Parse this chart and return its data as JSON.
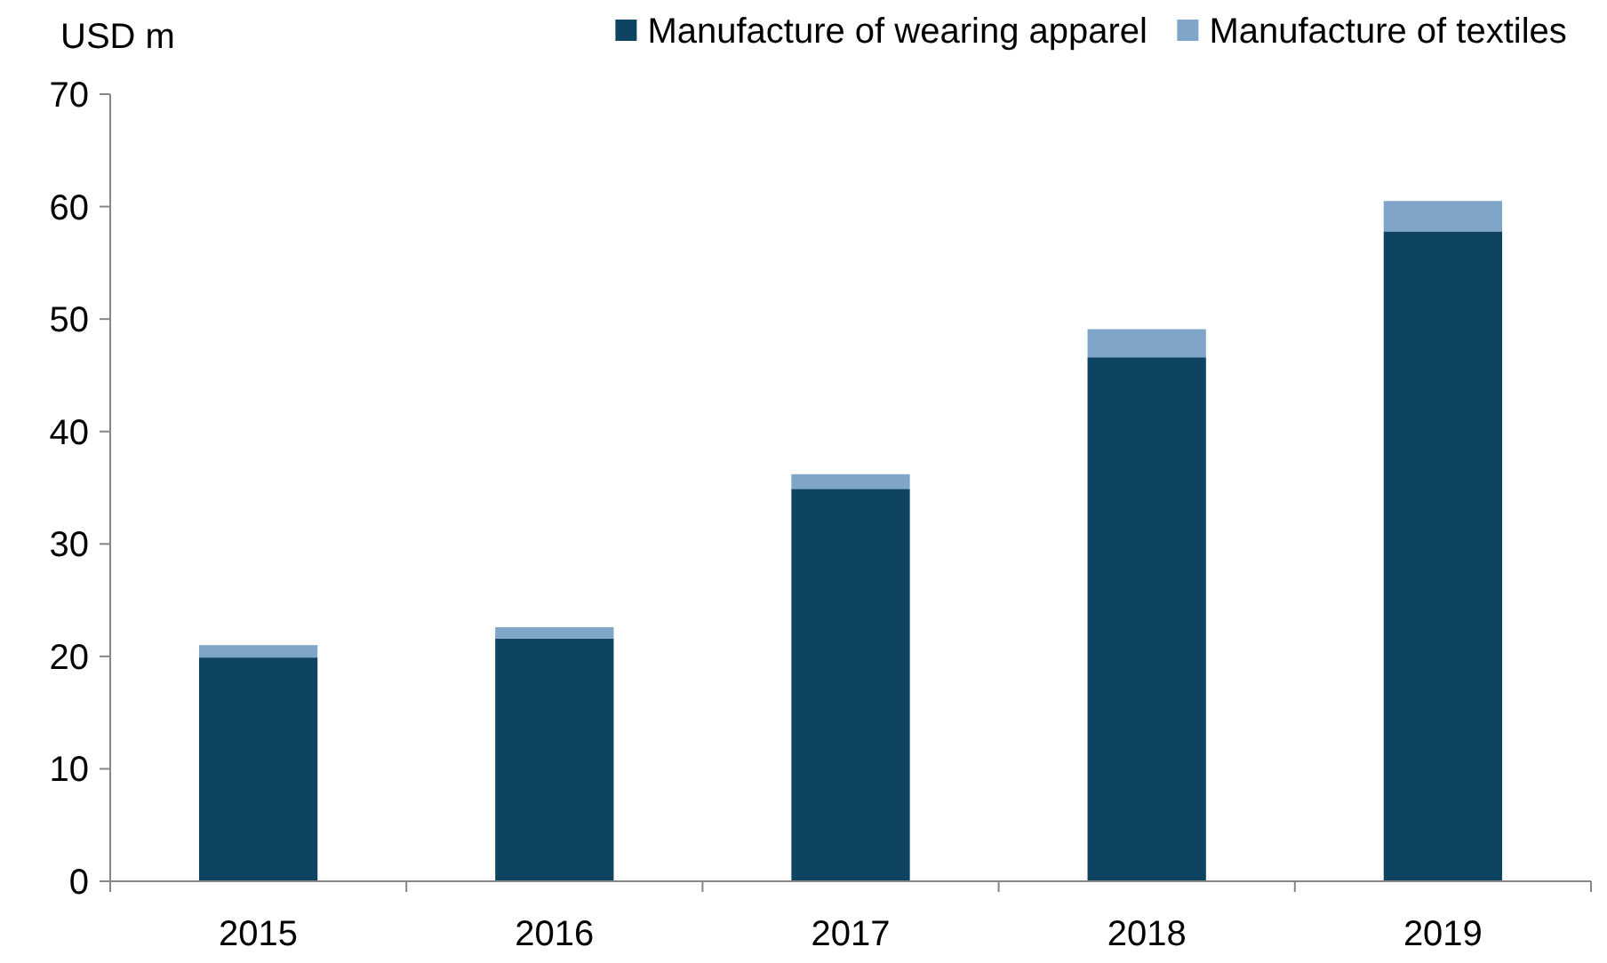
{
  "chart_data": {
    "type": "bar",
    "stacked": true,
    "ylabel": "USD m",
    "categories": [
      "2015",
      "2016",
      "2017",
      "2018",
      "2019"
    ],
    "series": [
      {
        "name": "Manufacture of wearing apparel",
        "color": "#0e4461",
        "values": [
          19.9,
          21.6,
          34.9,
          46.6,
          57.8
        ]
      },
      {
        "name": "Manufacture of textiles",
        "color": "#7fa6c9",
        "values": [
          1.1,
          1.0,
          1.3,
          2.5,
          2.7
        ]
      }
    ],
    "ylim": [
      0,
      70
    ],
    "yticks": [
      0,
      10,
      20,
      30,
      40,
      50,
      60,
      70
    ],
    "grid": false,
    "legend": "top right"
  }
}
